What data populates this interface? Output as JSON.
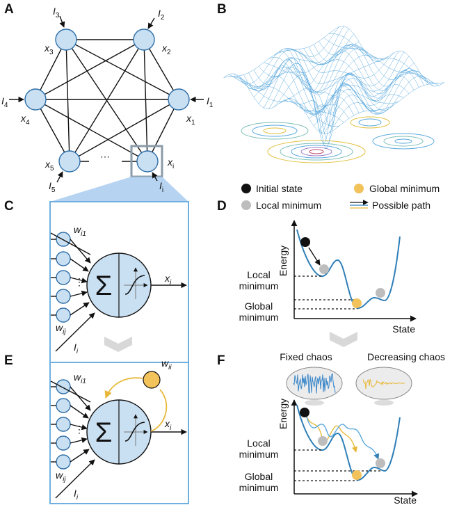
{
  "panels": {
    "a": "A",
    "b": "B",
    "c": "C",
    "d": "D",
    "e": "E",
    "f": "F"
  },
  "network": {
    "nodes": [
      {
        "x": "x",
        "x_sub": "1",
        "input": "I",
        "input_sub": "1"
      },
      {
        "x": "x",
        "x_sub": "2",
        "input": "I",
        "input_sub": "2"
      },
      {
        "x": "x",
        "x_sub": "3",
        "input": "I",
        "input_sub": "3"
      },
      {
        "x": "x",
        "x_sub": "4",
        "input": "I",
        "input_sub": "4"
      },
      {
        "x": "x",
        "x_sub": "5",
        "input": "I",
        "input_sub": "5"
      },
      {
        "x": "x",
        "x_sub": "i",
        "input": "I",
        "input_sub": "i"
      }
    ],
    "ellipsis": "⋯"
  },
  "neuron": {
    "weight_first": "w",
    "weight_first_sub": "i1",
    "weight_last": "w",
    "weight_last_sub": "ij",
    "input": "I",
    "input_sub": "i",
    "output": "x",
    "output_sub": "i",
    "sum_symbol": "Σ",
    "vdots": "⋮",
    "self_weight": "w",
    "self_weight_sub": "ii"
  },
  "legend": {
    "initial_state": "Initial state",
    "local_minimum": "Local minimum",
    "global_minimum": "Global minimum",
    "possible_path": "Possible path"
  },
  "landscape": {
    "energy": "Energy",
    "state": "State",
    "local_min_line1": "Local",
    "local_min_line2": "minimum",
    "global_min_line1": "Global",
    "global_min_line2": "minimum"
  },
  "chaos": {
    "fixed": "Fixed chaos",
    "decreasing": "Decreasing chaos"
  },
  "colors": {
    "node_fill": "#c9dff2",
    "node_stroke": "#2f6fa8",
    "curve": "#2f7fb8",
    "path_yellow": "#e8b83a",
    "global_dot": "#f2c25b",
    "local_dot": "#bdbdbd",
    "box_border": "#6fb0e0",
    "zoom_fill": "#a9cdee"
  }
}
